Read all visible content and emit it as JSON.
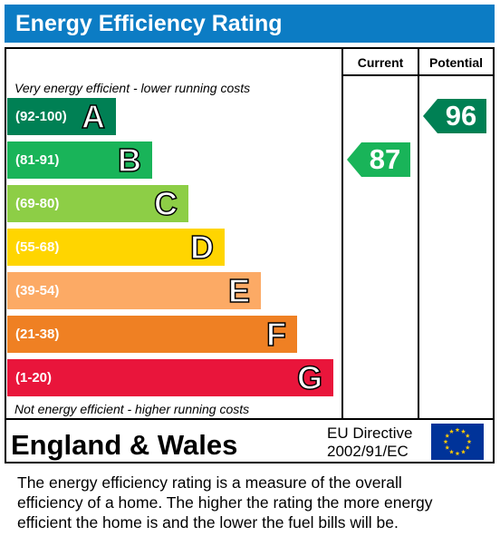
{
  "header": {
    "title": "Energy Efficiency Rating"
  },
  "columns": {
    "current": "Current",
    "potential": "Potential"
  },
  "notes": {
    "top": "Very energy efficient - lower running costs",
    "bottom": "Not energy efficient - higher running costs"
  },
  "chart_data": {
    "type": "bar",
    "title": "Energy Efficiency Rating",
    "bands": [
      {
        "letter": "A",
        "range": "(92-100)",
        "min": 92,
        "max": 100,
        "color": "#008054"
      },
      {
        "letter": "B",
        "range": "(81-91)",
        "min": 81,
        "max": 91,
        "color": "#19b459"
      },
      {
        "letter": "C",
        "range": "(69-80)",
        "min": 69,
        "max": 80,
        "color": "#8dce46"
      },
      {
        "letter": "D",
        "range": "(55-68)",
        "min": 55,
        "max": 68,
        "color": "#ffd500"
      },
      {
        "letter": "E",
        "range": "(39-54)",
        "min": 39,
        "max": 54,
        "color": "#fcaa65"
      },
      {
        "letter": "F",
        "range": "(21-38)",
        "min": 21,
        "max": 38,
        "color": "#ef8023"
      },
      {
        "letter": "G",
        "range": "(1-20)",
        "min": 1,
        "max": 20,
        "color": "#e9153b"
      }
    ],
    "ratings": {
      "current": {
        "value": 87,
        "band": "B",
        "color": "#19b459"
      },
      "potential": {
        "value": 96,
        "band": "A",
        "color": "#008054"
      }
    }
  },
  "footer": {
    "region": "England & Wales",
    "directive_line1": "EU Directive",
    "directive_line2": "2002/91/EC"
  },
  "description": {
    "line1": "The energy efficiency rating is a measure of the overall",
    "line2": "efficiency of a home.  The higher the rating the more energy",
    "line3": "efficient the home is and the lower the fuel bills will be."
  }
}
